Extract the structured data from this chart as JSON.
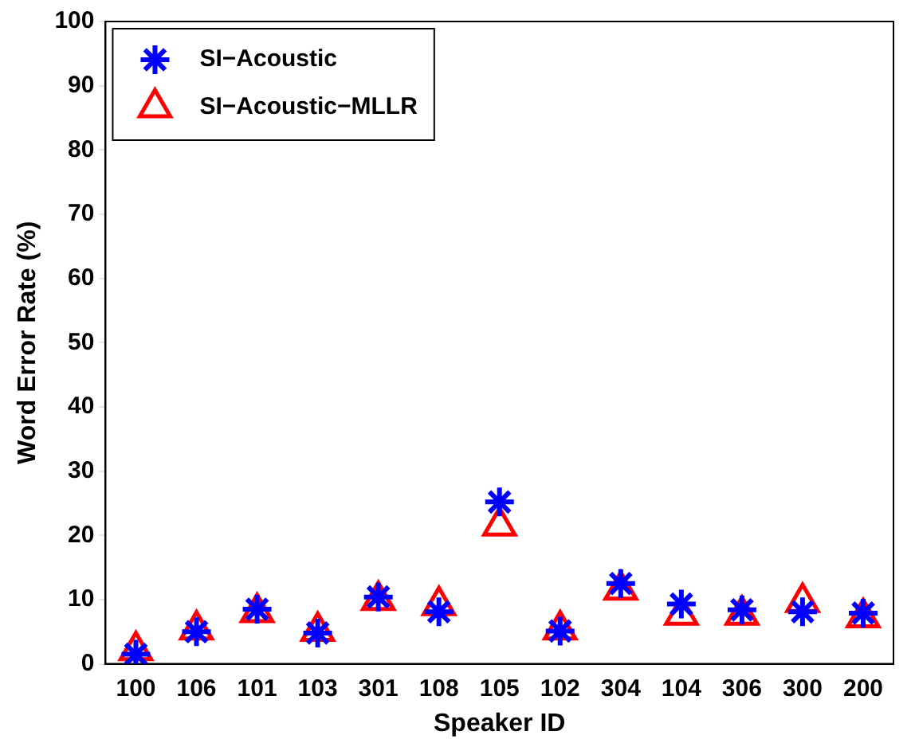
{
  "chart_data": {
    "type": "scatter",
    "xlabel": "Speaker ID",
    "ylabel": "Word Error Rate (%)",
    "categories": [
      "100",
      "106",
      "101",
      "103",
      "301",
      "108",
      "105",
      "102",
      "304",
      "104",
      "306",
      "300",
      "200"
    ],
    "series": [
      {
        "name": "SI−Acoustic",
        "color": "#0000ff",
        "marker": "cross",
        "values": [
          1.5,
          5.0,
          8.5,
          4.8,
          10.4,
          8.1,
          25.2,
          5.1,
          12.5,
          9.3,
          8.4,
          8.1,
          7.9
        ]
      },
      {
        "name": "SI−Acoustic−MLLR",
        "color": "#ff0000",
        "marker": "triangle",
        "values": [
          2.1,
          5.3,
          8.0,
          5.1,
          9.9,
          9.1,
          21.5,
          5.3,
          11.5,
          7.6,
          7.6,
          9.6,
          7.2
        ]
      }
    ],
    "ylim": [
      0,
      100
    ],
    "yticks": [
      0,
      10,
      20,
      30,
      40,
      50,
      60,
      70,
      80,
      90,
      100
    ],
    "grid": false,
    "legend": "top left"
  }
}
